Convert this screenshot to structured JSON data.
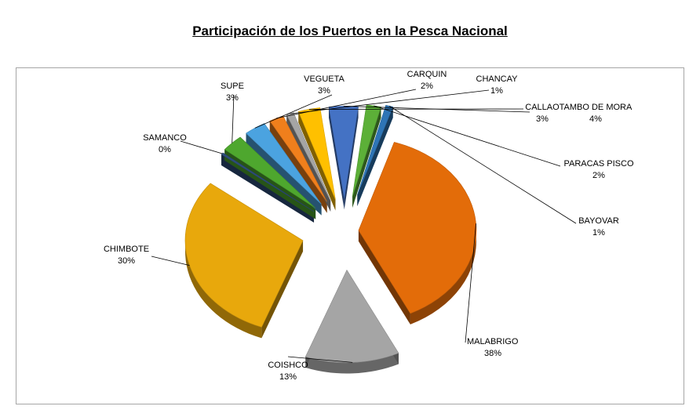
{
  "chart_data": {
    "type": "pie",
    "title": "Participación de los Puertos en la Pesca Nacional",
    "slices": [
      {
        "label": "MALABRIGO",
        "value": 38,
        "display": "38%",
        "color": "#e36c09"
      },
      {
        "label": "COISHCO",
        "value": 13,
        "display": "13%",
        "color": "#a5a5a5"
      },
      {
        "label": "CHIMBOTE",
        "value": 30,
        "display": "30%",
        "color": "#e8a80c"
      },
      {
        "label": "SAMANCO",
        "value": 0,
        "display": "0%",
        "color": "#2e4d7b"
      },
      {
        "label": "SUPE",
        "value": 3,
        "display": "3%",
        "color": "#4ea72e"
      },
      {
        "label": "VEGUETA",
        "value": 3,
        "display": "3%",
        "color": "#4ba3e0"
      },
      {
        "label": "CARQUIN",
        "value": 2,
        "display": "2%",
        "color": "#f07f1c"
      },
      {
        "label": "CHANCAY",
        "value": 1,
        "display": "1%",
        "color": "#a5a5a5"
      },
      {
        "label": "CALLAO",
        "value": 3,
        "display": "3%",
        "color": "#ffc000"
      },
      {
        "label": "TAMBO DE MORA",
        "value": 4,
        "display": "4%",
        "color": "#4472c4"
      },
      {
        "label": "PARACAS PISCO",
        "value": 2,
        "display": "2%",
        "color": "#5cb038"
      },
      {
        "label": "BAYOVAR",
        "value": 1,
        "display": "1%",
        "color": "#2e75b6"
      }
    ],
    "legend": "none",
    "style": "exploded 3d pie with callout labels"
  }
}
